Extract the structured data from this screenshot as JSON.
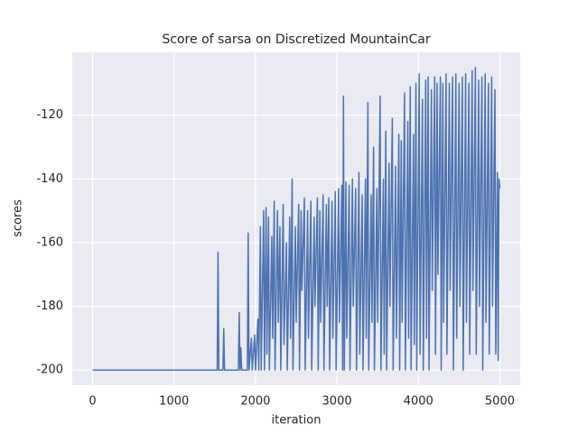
{
  "chart_data": {
    "type": "line",
    "title": "Score of sarsa on Discretized MountainCar",
    "xlabel": "iteration",
    "ylabel": "scores",
    "color": "#4c72b0",
    "grid": true,
    "xlim": [
      -250,
      5250
    ],
    "xticks": [
      0,
      1000,
      2000,
      3000,
      4000,
      5000
    ],
    "ylim": [
      -204.75,
      -100.25
    ],
    "yticks": [
      -200,
      -180,
      -160,
      -140,
      -120
    ],
    "x": [
      0,
      1530,
      1540,
      1550,
      1600,
      1610,
      1620,
      1790,
      1800,
      1810,
      1820,
      1830,
      1900,
      1910,
      1920,
      1950,
      1960,
      1990,
      2000,
      2030,
      2040,
      2060,
      2070,
      2100,
      2110,
      2130,
      2140,
      2160,
      2170,
      2200,
      2210,
      2230,
      2240,
      2270,
      2280,
      2300,
      2310,
      2340,
      2350,
      2380,
      2390,
      2420,
      2430,
      2450,
      2460,
      2490,
      2500,
      2530,
      2540,
      2560,
      2570,
      2600,
      2610,
      2640,
      2650,
      2680,
      2690,
      2720,
      2730,
      2760,
      2770,
      2790,
      2800,
      2830,
      2840,
      2870,
      2880,
      2900,
      2910,
      2940,
      2950,
      2980,
      2990,
      3020,
      3030,
      3060,
      3070,
      3080,
      3090,
      3110,
      3120,
      3150,
      3160,
      3190,
      3200,
      3230,
      3240,
      3270,
      3280,
      3310,
      3320,
      3350,
      3360,
      3380,
      3390,
      3420,
      3430,
      3450,
      3460,
      3490,
      3500,
      3530,
      3540,
      3570,
      3580,
      3600,
      3610,
      3640,
      3650,
      3680,
      3690,
      3720,
      3730,
      3760,
      3770,
      3790,
      3800,
      3830,
      3840,
      3870,
      3880,
      3900,
      3910,
      3940,
      3950,
      3970,
      3980,
      4010,
      4020,
      4050,
      4060,
      4090,
      4100,
      4120,
      4130,
      4160,
      4170,
      4200,
      4210,
      4230,
      4240,
      4270,
      4280,
      4300,
      4310,
      4340,
      4350,
      4380,
      4390,
      4420,
      4430,
      4460,
      4470,
      4500,
      4510,
      4540,
      4550,
      4580,
      4590,
      4620,
      4630,
      4660,
      4670,
      4700,
      4710,
      4740,
      4750,
      4780,
      4790,
      4820,
      4830,
      4860,
      4870,
      4900,
      4910,
      4940,
      4950,
      4970,
      4980,
      4990,
      5000
    ],
    "values": [
      -200,
      -200,
      -163,
      -200,
      -200,
      -187,
      -200,
      -200,
      -182,
      -200,
      -193,
      -200,
      -200,
      -157,
      -200,
      -190,
      -200,
      -189,
      -200,
      -184,
      -200,
      -155,
      -200,
      -150,
      -200,
      -149,
      -195,
      -152,
      -200,
      -158,
      -190,
      -147,
      -200,
      -150,
      -185,
      -155,
      -200,
      -148,
      -192,
      -160,
      -200,
      -152,
      -190,
      -140,
      -200,
      -155,
      -185,
      -148,
      -200,
      -150,
      -175,
      -146,
      -200,
      -150,
      -190,
      -147,
      -200,
      -152,
      -180,
      -146,
      -200,
      -150,
      -185,
      -145,
      -200,
      -148,
      -180,
      -146,
      -200,
      -147,
      -190,
      -144,
      -200,
      -143,
      -185,
      -142,
      -200,
      -114,
      -200,
      -141,
      -190,
      -142,
      -200,
      -140,
      -180,
      -143,
      -200,
      -138,
      -195,
      -145,
      -200,
      -140,
      -190,
      -116,
      -200,
      -145,
      -185,
      -130,
      -200,
      -143,
      -185,
      -114,
      -200,
      -140,
      -195,
      -125,
      -200,
      -135,
      -180,
      -121,
      -200,
      -136,
      -190,
      -126,
      -200,
      -128,
      -185,
      -113,
      -200,
      -122,
      -190,
      -111,
      -200,
      -126,
      -192,
      -110,
      -200,
      -107,
      -195,
      -115,
      -200,
      -109,
      -190,
      -108,
      -200,
      -112,
      -175,
      -108,
      -195,
      -110,
      -170,
      -108,
      -200,
      -110,
      -185,
      -107,
      -195,
      -110,
      -175,
      -108,
      -200,
      -107,
      -190,
      -110,
      -180,
      -108,
      -200,
      -107,
      -185,
      -110,
      -195,
      -106,
      -175,
      -105,
      -195,
      -109,
      -180,
      -108,
      -200,
      -107,
      -185,
      -110,
      -195,
      -108,
      -180,
      -112,
      -195,
      -138,
      -197,
      -140,
      -143
    ]
  }
}
